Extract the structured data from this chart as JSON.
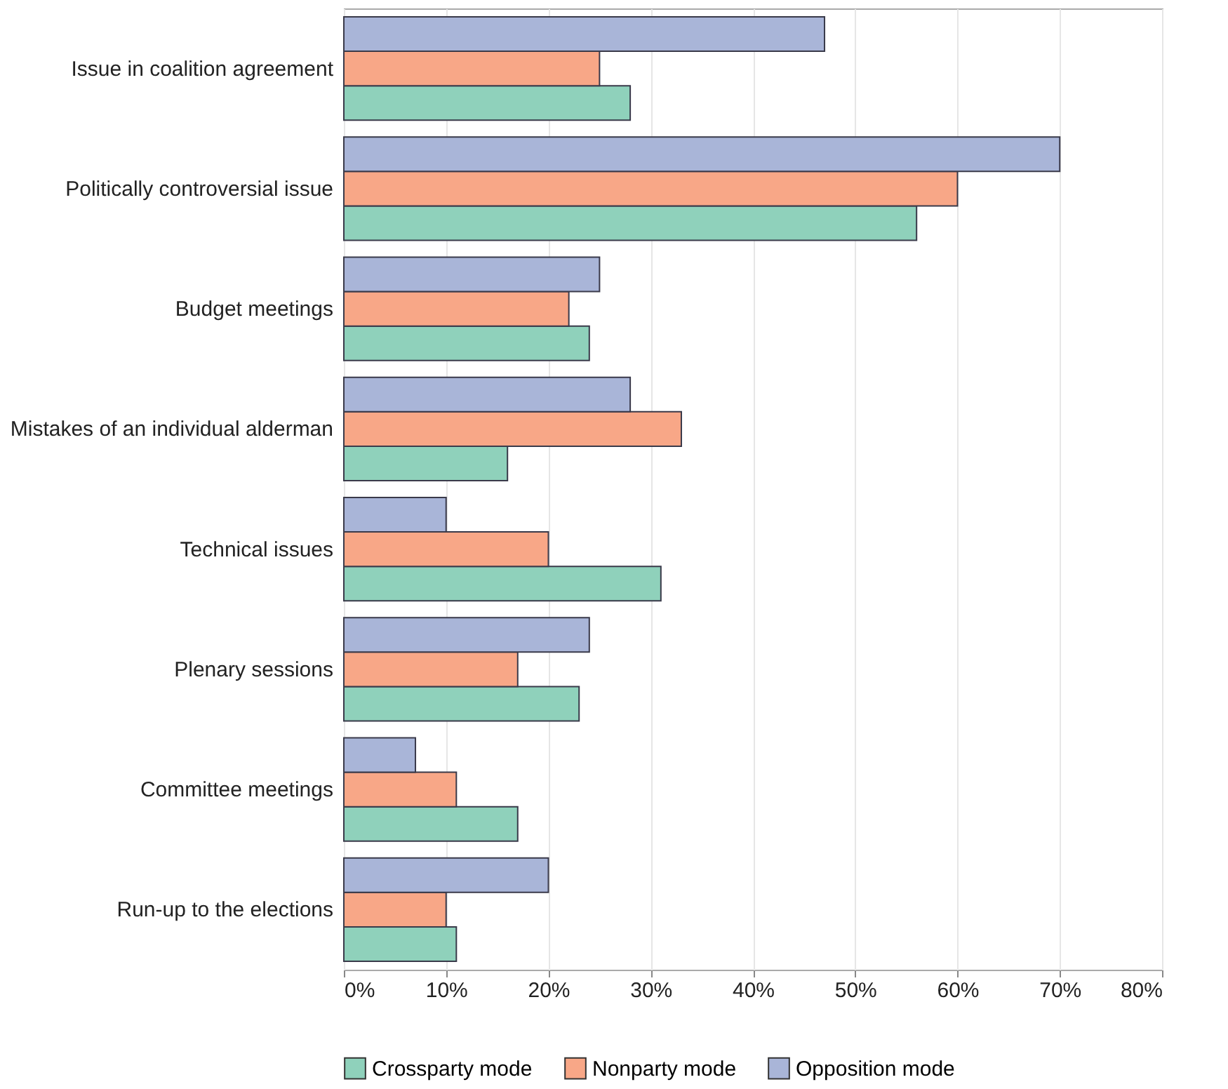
{
  "chart_data": {
    "type": "bar",
    "orientation": "horizontal",
    "categories": [
      "Issue in coalition agreement",
      "Politically controversial issue",
      "Budget meetings",
      "Mistakes of an individual alderman",
      "Technical issues",
      "Plenary sessions",
      "Committee meetings",
      "Run-up to the elections"
    ],
    "series": [
      {
        "name": "Crossparty mode",
        "color": "#8fd1bb",
        "values": [
          28,
          56,
          24,
          16,
          31,
          23,
          17,
          11
        ]
      },
      {
        "name": "Nonparty mode",
        "color": "#f8a787",
        "values": [
          25,
          60,
          22,
          33,
          20,
          17,
          11,
          10
        ]
      },
      {
        "name": "Opposition mode",
        "color": "#a9b5d8",
        "values": [
          47,
          70,
          25,
          28,
          10,
          24,
          7,
          20
        ]
      }
    ],
    "xlim": [
      0,
      80
    ],
    "xticks": [
      {
        "value": 0,
        "label": "0%"
      },
      {
        "value": 10,
        "label": "10%"
      },
      {
        "value": 20,
        "label": "20%"
      },
      {
        "value": 30,
        "label": "30%"
      },
      {
        "value": 40,
        "label": "40%"
      },
      {
        "value": 50,
        "label": "50%"
      },
      {
        "value": 60,
        "label": "60%"
      },
      {
        "value": 70,
        "label": "70%"
      },
      {
        "value": 80,
        "label": "80%"
      }
    ],
    "grid": "x",
    "legend": "bottom"
  }
}
